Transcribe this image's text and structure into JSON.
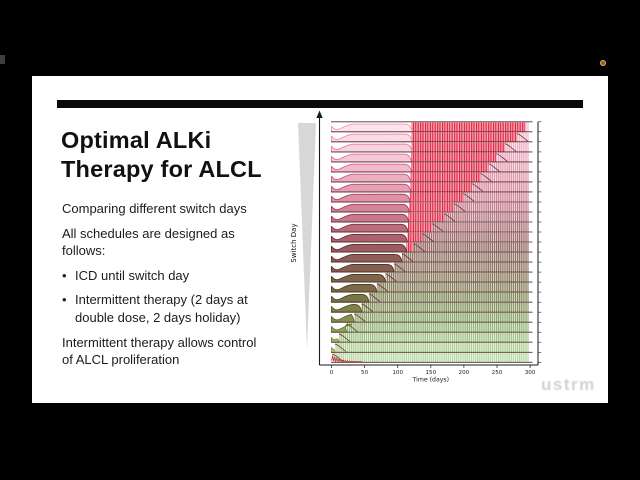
{
  "page": {
    "background": "#000000",
    "watermark_text": "ustrm"
  },
  "slide": {
    "title_lines": [
      "Optimal ALKi",
      "Therapy for ALCL"
    ],
    "content": [
      {
        "type": "para",
        "lines": [
          "Comparing different switch days"
        ]
      },
      {
        "type": "para",
        "lines": [
          "All schedules are designed as",
          "follows:"
        ]
      },
      {
        "type": "bullet",
        "lines": [
          "ICD until switch day"
        ]
      },
      {
        "type": "bullet",
        "lines": [
          "Intermittent therapy (2 days at",
          "double dose, 2 days holiday)"
        ]
      },
      {
        "type": "para",
        "lines": [
          "Intermittent therapy allows control",
          "of ALCL proliferation"
        ]
      }
    ],
    "bullet_glyph": "•"
  },
  "chart_data": {
    "type": "ridgeline",
    "xlabel": "Time (days)",
    "ylabel": "Switch Day",
    "x_ticks": [
      0,
      50,
      100,
      150,
      200,
      250,
      300
    ],
    "xlim": [
      0,
      300
    ],
    "n_rows": 24,
    "red_color": "#e41839",
    "tail_color": "#6b2a2a",
    "gridline_color": "#4d2e2c",
    "axis_color": "#1a1a1a",
    "wedge_color": "#c7c7c7",
    "rows": [
      {
        "switch_day": 120,
        "red_until": 293,
        "fill": "#fce4ef",
        "stroke": "#f09ab9",
        "stripe": "#eda6c2",
        "stripe_bg": "#fdf0f6"
      },
      {
        "switch_day": 120,
        "red_until": 280,
        "fill": "#fadce9",
        "stroke": "#ea8db0",
        "stripe": "#eb9eba",
        "stripe_bg": "#fceef4"
      },
      {
        "switch_day": 120,
        "red_until": 262,
        "fill": "#f8d2e1",
        "stroke": "#e380a4",
        "stripe": "#e795b2",
        "stripe_bg": "#fcebf1"
      },
      {
        "switch_day": 119,
        "red_until": 249,
        "fill": "#f5c7d7",
        "stroke": "#db7297",
        "stripe": "#e28baa",
        "stripe_bg": "#fbe8ee"
      },
      {
        "switch_day": 119,
        "red_until": 237,
        "fill": "#f1bbcd",
        "stroke": "#d2648a",
        "stripe": "#dc81a0",
        "stripe_bg": "#fae5eb"
      },
      {
        "switch_day": 118,
        "red_until": 225,
        "fill": "#ecaec2",
        "stroke": "#c8577d",
        "stripe": "#d47795",
        "stripe_bg": "#f8e2e7"
      },
      {
        "switch_day": 118,
        "red_until": 212,
        "fill": "#e6a0b6",
        "stroke": "#bc4b70",
        "stripe": "#cb6d8a",
        "stripe_bg": "#f6dfe3"
      },
      {
        "switch_day": 117,
        "red_until": 199,
        "fill": "#de92a9",
        "stroke": "#af4163",
        "stripe": "#c16480",
        "stripe_bg": "#f3dcdf"
      },
      {
        "switch_day": 116,
        "red_until": 185,
        "fill": "#d4849a",
        "stroke": "#a23857",
        "stripe": "#b25c73",
        "stripe_bg": "#f0d9db"
      },
      {
        "switch_day": 115,
        "red_until": 170,
        "fill": "#c8788b",
        "stroke": "#93314b",
        "stripe": "#a35467",
        "stripe_bg": "#ecd6d6"
      },
      {
        "switch_day": 114,
        "red_until": 152,
        "fill": "#ba6c7c",
        "stroke": "#822c40",
        "stripe": "#944d5c",
        "stripe_bg": "#e8d4d2"
      },
      {
        "switch_day": 113,
        "red_until": 137,
        "fill": "#ab626e",
        "stroke": "#712936",
        "stripe": "#854752",
        "stripe_bg": "#e4d2cd"
      },
      {
        "switch_day": 112,
        "red_until": 124,
        "fill": "#9b5c61",
        "stroke": "#61282c",
        "stripe": "#784342",
        "stripe_bg": "#e0d1c9"
      },
      {
        "switch_day": 105,
        "red_until": null,
        "fill": "#8d5d57",
        "stroke": "#552d25",
        "stripe": "#74564b",
        "stripe_bg": "#ddd0c5"
      },
      {
        "switch_day": 93,
        "red_until": null,
        "fill": "#845f4f",
        "stroke": "#4d3421",
        "stripe": "#70584a",
        "stripe_bg": "#dbd1c2"
      },
      {
        "switch_day": 80,
        "red_until": null,
        "fill": "#7e6449",
        "stroke": "#483a20",
        "stripe": "#6d5c48",
        "stripe_bg": "#dad4c0"
      },
      {
        "switch_day": 67,
        "red_until": null,
        "fill": "#7b6b45",
        "stroke": "#454220",
        "stripe": "#6a6146",
        "stripe_bg": "#d9d7bf"
      },
      {
        "switch_day": 55,
        "red_until": null,
        "fill": "#7b7445",
        "stroke": "#454b22",
        "stripe": "#646c44",
        "stripe_bg": "#d9dcc0"
      },
      {
        "switch_day": 44,
        "red_until": null,
        "fill": "#808048",
        "stroke": "#4b5827",
        "stripe": "#68784a",
        "stripe_bg": "#dae1c3"
      },
      {
        "switch_day": 33,
        "red_until": null,
        "fill": "#8b8f51",
        "stroke": "#54652e",
        "stripe": "#6f8a55",
        "stripe_bg": "#dce7c8"
      },
      {
        "switch_day": 21,
        "red_until": null,
        "fill": "#9aa35e",
        "stroke": "#607538",
        "stripe": "#7a9c62",
        "stripe_bg": "#dfeccd"
      },
      {
        "switch_day": 10,
        "red_until": null,
        "fill": "#adb970",
        "stroke": "#6f8844",
        "stripe": "#88ae72",
        "stripe_bg": "#e3f1d3"
      },
      {
        "switch_day": 4,
        "red_until": null,
        "fill": "#c3d186",
        "stroke": "#809a52",
        "stripe": "#97bd82",
        "stripe_bg": "#e8f5da"
      },
      {
        "switch_day": 0,
        "red_until": null,
        "fill": "#d6e49c",
        "stroke": "#8fab5e",
        "stripe": "#a3c98f",
        "stripe_bg": "#ecf8e0",
        "squiggle": true
      }
    ]
  }
}
